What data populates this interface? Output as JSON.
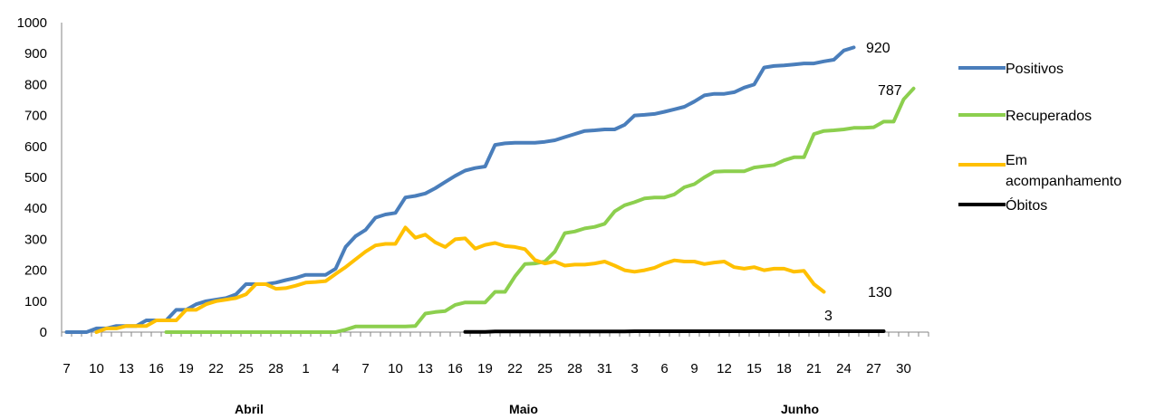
{
  "chart_data": {
    "type": "line",
    "title": "",
    "xlabel": "",
    "ylabel": "",
    "ylim": [
      0,
      1000
    ],
    "yticks": [
      0,
      100,
      200,
      300,
      400,
      500,
      600,
      700,
      800,
      900,
      1000
    ],
    "xticks": [
      "7",
      "10",
      "13",
      "16",
      "19",
      "22",
      "25",
      "28",
      "1",
      "4",
      "7",
      "10",
      "13",
      "16",
      "19",
      "22",
      "25",
      "28",
      "31",
      "3",
      "6",
      "9",
      "12",
      "15",
      "18",
      "21",
      "24",
      "27",
      "30"
    ],
    "months": [
      "Abril",
      "Maio",
      "Junho"
    ],
    "grid": false,
    "legend_position": "right",
    "series": [
      {
        "name": "Positivos",
        "color": "#4A7EBB",
        "end_label": "920",
        "start_index": 0,
        "values": [
          0,
          0,
          0,
          12,
          12,
          20,
          20,
          20,
          38,
          38,
          38,
          72,
          72,
          90,
          100,
          105,
          110,
          122,
          155,
          155,
          155,
          160,
          168,
          175,
          185,
          185,
          185,
          205,
          275,
          310,
          330,
          370,
          380,
          385,
          435,
          440,
          448,
          465,
          485,
          505,
          522,
          530,
          535,
          605,
          610,
          612,
          612,
          612,
          615,
          620,
          630,
          640,
          650,
          652,
          655,
          655,
          670,
          700,
          702,
          705,
          712,
          720,
          728,
          745,
          765,
          770,
          770,
          775,
          790,
          800,
          855,
          860,
          862,
          865,
          868,
          868,
          875,
          880,
          910,
          920
        ]
      },
      {
        "name": "Recuperados",
        "color": "#8CCF4E",
        "end_label": "787",
        "start_index": 10,
        "values": [
          0,
          0,
          0,
          0,
          0,
          0,
          0,
          0,
          0,
          0,
          0,
          0,
          0,
          0,
          0,
          0,
          0,
          0,
          8,
          18,
          18,
          18,
          18,
          18,
          18,
          20,
          60,
          65,
          68,
          88,
          96,
          96,
          96,
          130,
          130,
          180,
          220,
          222,
          228,
          260,
          320,
          325,
          335,
          340,
          350,
          390,
          410,
          420,
          432,
          435,
          435,
          445,
          468,
          478,
          500,
          518,
          520,
          520,
          520,
          532,
          536,
          540,
          555,
          565,
          565,
          640,
          650,
          652,
          655,
          660,
          660,
          662,
          680,
          680,
          752,
          787
        ]
      },
      {
        "name": "Em acompanhamento",
        "color": "#FFC000",
        "end_label": "130",
        "start_index": 3,
        "values": [
          0,
          12,
          12,
          20,
          20,
          20,
          38,
          38,
          38,
          72,
          72,
          90,
          100,
          105,
          110,
          122,
          155,
          155,
          140,
          142,
          150,
          160,
          162,
          165,
          188,
          210,
          235,
          260,
          280,
          285,
          285,
          338,
          305,
          315,
          290,
          275,
          300,
          303,
          270,
          282,
          288,
          278,
          275,
          268,
          233,
          222,
          228,
          215,
          218,
          218,
          222,
          228,
          215,
          200,
          195,
          200,
          208,
          222,
          232,
          228,
          228,
          220,
          225,
          228,
          210,
          205,
          210,
          200,
          205,
          205,
          195,
          198,
          155,
          130
        ]
      },
      {
        "name": "Óbitos",
        "color": "#000000",
        "end_label": "3",
        "start_index": 40,
        "values": [
          1,
          1,
          1,
          2,
          2,
          2,
          2,
          2,
          2,
          2,
          2,
          2,
          2,
          2,
          2,
          2,
          2,
          3,
          3,
          3,
          3,
          3,
          3,
          3,
          3,
          3,
          3,
          3,
          3,
          3,
          3,
          3,
          3,
          3,
          3,
          3,
          3,
          3,
          3,
          3,
          3,
          3,
          3
        ]
      }
    ]
  }
}
